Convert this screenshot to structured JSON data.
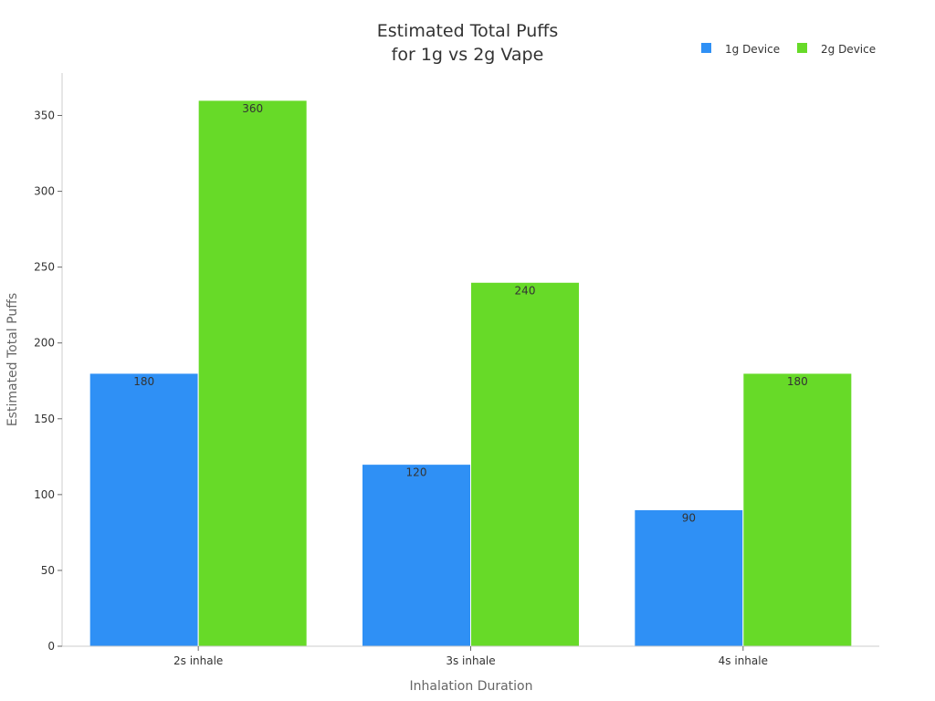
{
  "chart_data": {
    "type": "bar",
    "title": [
      "Estimated Total Puffs",
      "for 1g vs 2g Vape"
    ],
    "xlabel": "Inhalation Duration",
    "ylabel": "Estimated Total Puffs",
    "categories": [
      "2s inhale",
      "3s inhale",
      "4s inhale"
    ],
    "series": [
      {
        "name": "1g Device",
        "values": [
          180,
          120,
          90
        ],
        "color": "#2f90f5"
      },
      {
        "name": "2g Device",
        "values": [
          360,
          240,
          180
        ],
        "color": "#67da28"
      }
    ],
    "ylim": [
      0,
      378
    ],
    "yticks": [
      0,
      50,
      100,
      150,
      200,
      250,
      300,
      350
    ],
    "grid": false,
    "legend": "top-right",
    "data_labels": true
  }
}
